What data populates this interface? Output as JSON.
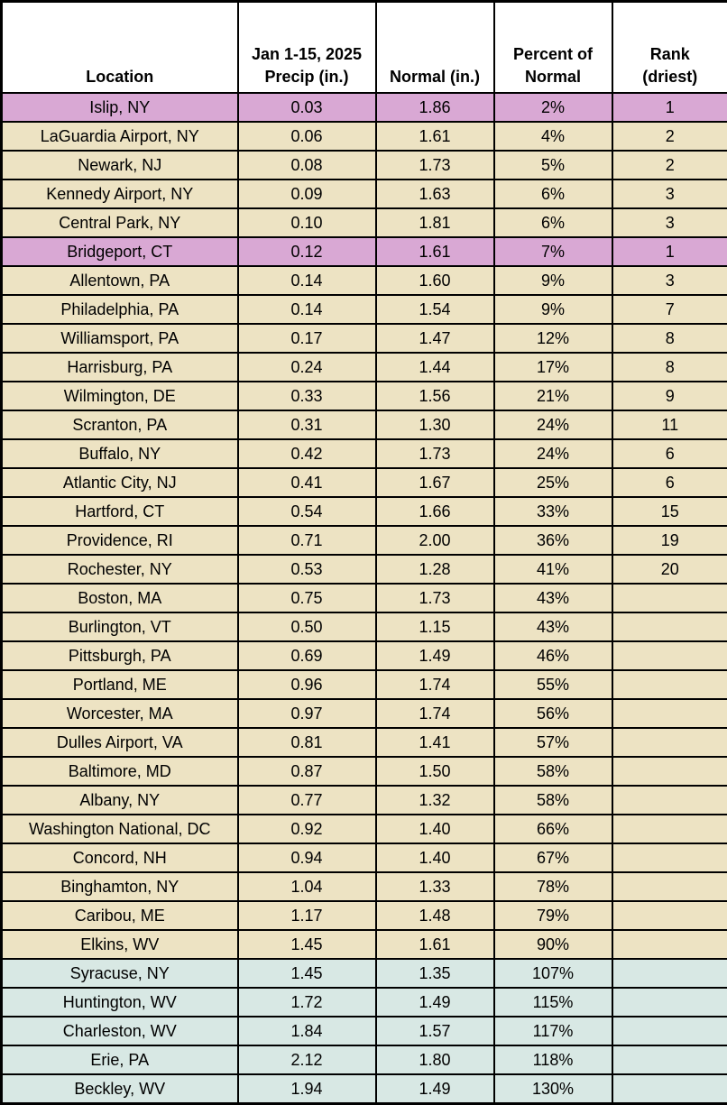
{
  "colors": {
    "pink": "#d9a8d4",
    "tan": "#ede3c3",
    "teal": "#d8e8e4",
    "border": "#000000",
    "header_bg": "#ffffff"
  },
  "chart_data": {
    "type": "table",
    "legend_meaning": {
      "pink": "rank 1 driest on record",
      "tan": "below normal precipitation",
      "teal": "above normal precipitation"
    },
    "columns": [
      {
        "id": "location",
        "lines": [
          "Location"
        ]
      },
      {
        "id": "precip",
        "lines": [
          "Jan 1-15, 2025",
          "Precip (in.)"
        ]
      },
      {
        "id": "normal",
        "lines": [
          "Normal (in.)"
        ]
      },
      {
        "id": "percent_of_normal",
        "lines": [
          "Percent of",
          "Normal"
        ]
      },
      {
        "id": "rank",
        "lines": [
          "Rank",
          "(driest)"
        ]
      }
    ],
    "rows": [
      {
        "location": "Islip, NY",
        "precip": "0.03",
        "normal": "1.86",
        "percent_of_normal": "2%",
        "rank": "1",
        "highlight": "pink"
      },
      {
        "location": "LaGuardia Airport, NY",
        "precip": "0.06",
        "normal": "1.61",
        "percent_of_normal": "4%",
        "rank": "2",
        "highlight": "tan"
      },
      {
        "location": "Newark, NJ",
        "precip": "0.08",
        "normal": "1.73",
        "percent_of_normal": "5%",
        "rank": "2",
        "highlight": "tan"
      },
      {
        "location": "Kennedy Airport, NY",
        "precip": "0.09",
        "normal": "1.63",
        "percent_of_normal": "6%",
        "rank": "3",
        "highlight": "tan"
      },
      {
        "location": "Central Park, NY",
        "precip": "0.10",
        "normal": "1.81",
        "percent_of_normal": "6%",
        "rank": "3",
        "highlight": "tan"
      },
      {
        "location": "Bridgeport, CT",
        "precip": "0.12",
        "normal": "1.61",
        "percent_of_normal": "7%",
        "rank": "1",
        "highlight": "pink"
      },
      {
        "location": "Allentown, PA",
        "precip": "0.14",
        "normal": "1.60",
        "percent_of_normal": "9%",
        "rank": "3",
        "highlight": "tan"
      },
      {
        "location": "Philadelphia, PA",
        "precip": "0.14",
        "normal": "1.54",
        "percent_of_normal": "9%",
        "rank": "7",
        "highlight": "tan"
      },
      {
        "location": "Williamsport, PA",
        "precip": "0.17",
        "normal": "1.47",
        "percent_of_normal": "12%",
        "rank": "8",
        "highlight": "tan"
      },
      {
        "location": "Harrisburg, PA",
        "precip": "0.24",
        "normal": "1.44",
        "percent_of_normal": "17%",
        "rank": "8",
        "highlight": "tan"
      },
      {
        "location": "Wilmington, DE",
        "precip": "0.33",
        "normal": "1.56",
        "percent_of_normal": "21%",
        "rank": "9",
        "highlight": "tan"
      },
      {
        "location": "Scranton, PA",
        "precip": "0.31",
        "normal": "1.30",
        "percent_of_normal": "24%",
        "rank": "11",
        "highlight": "tan"
      },
      {
        "location": "Buffalo, NY",
        "precip": "0.42",
        "normal": "1.73",
        "percent_of_normal": "24%",
        "rank": "6",
        "highlight": "tan"
      },
      {
        "location": "Atlantic City, NJ",
        "precip": "0.41",
        "normal": "1.67",
        "percent_of_normal": "25%",
        "rank": "6",
        "highlight": "tan"
      },
      {
        "location": "Hartford, CT",
        "precip": "0.54",
        "normal": "1.66",
        "percent_of_normal": "33%",
        "rank": "15",
        "highlight": "tan"
      },
      {
        "location": "Providence, RI",
        "precip": "0.71",
        "normal": "2.00",
        "percent_of_normal": "36%",
        "rank": "19",
        "highlight": "tan"
      },
      {
        "location": "Rochester, NY",
        "precip": "0.53",
        "normal": "1.28",
        "percent_of_normal": "41%",
        "rank": "20",
        "highlight": "tan"
      },
      {
        "location": "Boston, MA",
        "precip": "0.75",
        "normal": "1.73",
        "percent_of_normal": "43%",
        "rank": "",
        "highlight": "tan"
      },
      {
        "location": "Burlington, VT",
        "precip": "0.50",
        "normal": "1.15",
        "percent_of_normal": "43%",
        "rank": "",
        "highlight": "tan"
      },
      {
        "location": "Pittsburgh, PA",
        "precip": "0.69",
        "normal": "1.49",
        "percent_of_normal": "46%",
        "rank": "",
        "highlight": "tan"
      },
      {
        "location": "Portland, ME",
        "precip": "0.96",
        "normal": "1.74",
        "percent_of_normal": "55%",
        "rank": "",
        "highlight": "tan"
      },
      {
        "location": "Worcester, MA",
        "precip": "0.97",
        "normal": "1.74",
        "percent_of_normal": "56%",
        "rank": "",
        "highlight": "tan"
      },
      {
        "location": "Dulles Airport, VA",
        "precip": "0.81",
        "normal": "1.41",
        "percent_of_normal": "57%",
        "rank": "",
        "highlight": "tan"
      },
      {
        "location": "Baltimore, MD",
        "precip": "0.87",
        "normal": "1.50",
        "percent_of_normal": "58%",
        "rank": "",
        "highlight": "tan"
      },
      {
        "location": "Albany, NY",
        "precip": "0.77",
        "normal": "1.32",
        "percent_of_normal": "58%",
        "rank": "",
        "highlight": "tan"
      },
      {
        "location": "Washington National, DC",
        "precip": "0.92",
        "normal": "1.40",
        "percent_of_normal": "66%",
        "rank": "",
        "highlight": "tan"
      },
      {
        "location": "Concord, NH",
        "precip": "0.94",
        "normal": "1.40",
        "percent_of_normal": "67%",
        "rank": "",
        "highlight": "tan"
      },
      {
        "location": "Binghamton, NY",
        "precip": "1.04",
        "normal": "1.33",
        "percent_of_normal": "78%",
        "rank": "",
        "highlight": "tan"
      },
      {
        "location": "Caribou, ME",
        "precip": "1.17",
        "normal": "1.48",
        "percent_of_normal": "79%",
        "rank": "",
        "highlight": "tan"
      },
      {
        "location": "Elkins, WV",
        "precip": "1.45",
        "normal": "1.61",
        "percent_of_normal": "90%",
        "rank": "",
        "highlight": "tan"
      },
      {
        "location": "Syracuse, NY",
        "precip": "1.45",
        "normal": "1.35",
        "percent_of_normal": "107%",
        "rank": "",
        "highlight": "teal"
      },
      {
        "location": "Huntington, WV",
        "precip": "1.72",
        "normal": "1.49",
        "percent_of_normal": "115%",
        "rank": "",
        "highlight": "teal"
      },
      {
        "location": "Charleston, WV",
        "precip": "1.84",
        "normal": "1.57",
        "percent_of_normal": "117%",
        "rank": "",
        "highlight": "teal"
      },
      {
        "location": "Erie, PA",
        "precip": "2.12",
        "normal": "1.80",
        "percent_of_normal": "118%",
        "rank": "",
        "highlight": "teal"
      },
      {
        "location": "Beckley, WV",
        "precip": "1.94",
        "normal": "1.49",
        "percent_of_normal": "130%",
        "rank": "",
        "highlight": "teal"
      }
    ]
  }
}
